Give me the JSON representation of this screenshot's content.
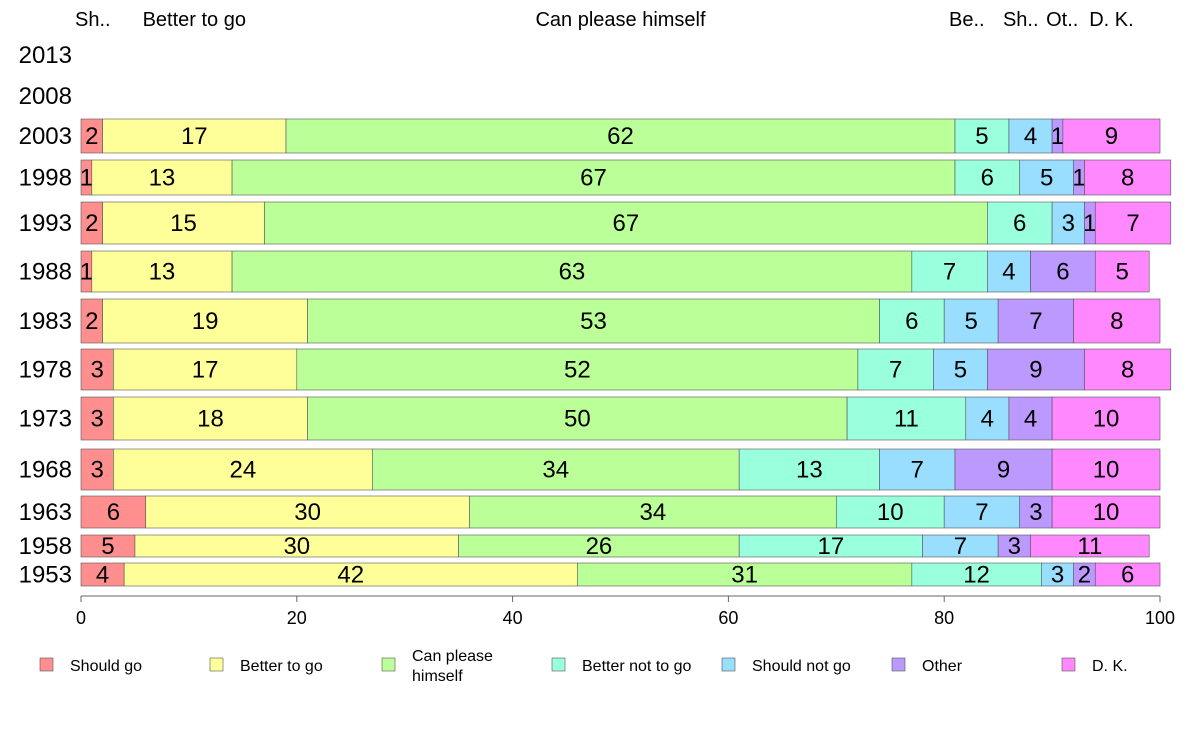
{
  "chart_data": {
    "type": "bar",
    "orientation": "horizontal",
    "stacked": true,
    "title": "",
    "xlabel": "",
    "ylabel": "",
    "xlim": [
      0,
      100
    ],
    "x_ticks": [
      0,
      20,
      40,
      60,
      80,
      100
    ],
    "legend_position": "bottom",
    "categories": [
      "2013",
      "2008",
      "2003",
      "1998",
      "1993",
      "1988",
      "1983",
      "1978",
      "1973",
      "1968",
      "1963",
      "1958",
      "1953"
    ],
    "series": [
      {
        "name": "Should go",
        "short": "Sh..",
        "color": "#ff8f8f",
        "values": [
          null,
          null,
          2,
          1,
          2,
          1,
          2,
          3,
          3,
          3,
          6,
          5,
          4
        ]
      },
      {
        "name": "Better to go",
        "short": "Better to go",
        "color": "#ffff99",
        "values": [
          null,
          null,
          17,
          13,
          15,
          13,
          19,
          17,
          18,
          24,
          30,
          30,
          42
        ]
      },
      {
        "name": "Can please himself",
        "short": "Can please himself",
        "color": "#bbff99",
        "values": [
          null,
          null,
          62,
          67,
          67,
          63,
          53,
          52,
          50,
          34,
          34,
          26,
          31
        ]
      },
      {
        "name": "Better not to go",
        "short": "Be..",
        "color": "#99ffdd",
        "values": [
          null,
          null,
          5,
          6,
          6,
          7,
          6,
          7,
          11,
          13,
          10,
          17,
          12
        ]
      },
      {
        "name": "Should not go",
        "short": "Sh..",
        "color": "#99ddff",
        "values": [
          null,
          null,
          4,
          5,
          3,
          4,
          5,
          5,
          4,
          7,
          7,
          7,
          3
        ]
      },
      {
        "name": "Other",
        "short": "Ot..",
        "color": "#bb99ff",
        "values": [
          null,
          null,
          1,
          1,
          1,
          6,
          7,
          9,
          4,
          9,
          3,
          3,
          2
        ]
      },
      {
        "name": "D. K.",
        "short": "D. K.",
        "color": "#ff88ff",
        "values": [
          null,
          null,
          9,
          8,
          7,
          5,
          8,
          8,
          10,
          10,
          10,
          11,
          6
        ]
      }
    ],
    "legend_labels": [
      "Should go",
      "Better to go",
      "Can please\nhimself",
      "Better not to go",
      "Should not go",
      "Other",
      "D. K."
    ]
  }
}
